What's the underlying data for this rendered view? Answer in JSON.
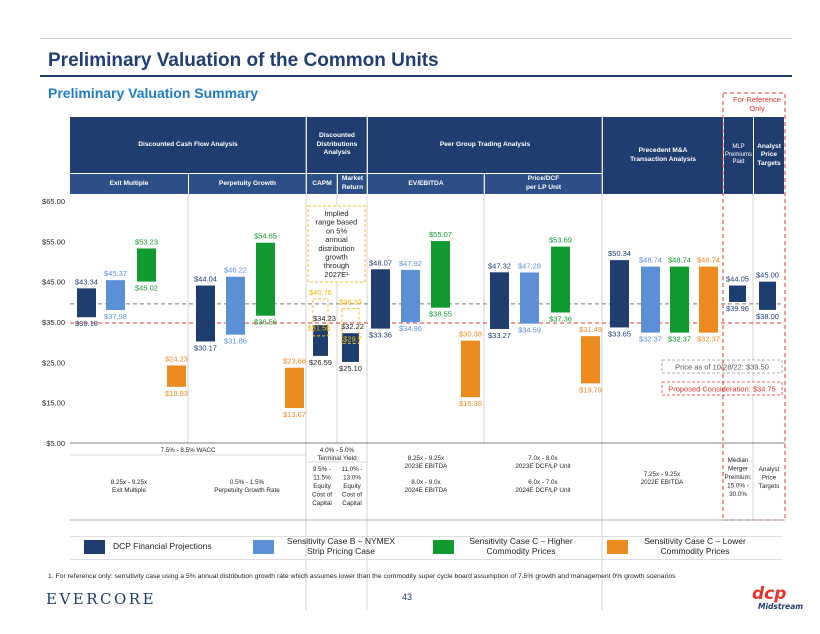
{
  "title": "Preliminary Valuation of the Common Units",
  "subtitle": "Preliminary Valuation Summary",
  "reference_note": "For Reference Only",
  "headers": {
    "dcf": "Discounted Cash Flow Analysis",
    "ddm": "Discounted Distributions Analysis",
    "peer": "Peer Group Trading Analysis",
    "precedent": "Precedent M&A Transaction Analysis",
    "mlp": "MLP Premiums Paid",
    "analyst": "Analyst Price Targets",
    "exit": "Exit Multiple",
    "perp": "Perpetuity Growth",
    "capm": "CAPM",
    "market": "Market Return",
    "ev": "EV/EBITDA",
    "pdcf": "Price/DCF per LP Unit"
  },
  "bottom_table": {
    "wacc": "7.5% - 8.5% WACC",
    "exit": [
      "8.25x - 9.25x",
      "Exit Multiple"
    ],
    "perp": [
      "0.5% - 1.5%",
      "Perpetuity Growth Rate"
    ],
    "yield": [
      "4.0% - 5.0%",
      "Terminal Yield"
    ],
    "capm": [
      "9.5% -",
      "11.5%",
      "Equity",
      "Cost of",
      "Capital"
    ],
    "market": [
      "11.0% -",
      "13.0%",
      "Equity",
      "Cost of",
      "Capital"
    ],
    "ev": [
      "8.25x - 9.25x",
      "2023E EBITDA",
      "",
      "8.0x - 9.0x",
      "2024E EBITDA"
    ],
    "pdcf": [
      "7.0x - 8.0x",
      "2023E DCF/LP Unit",
      "",
      "6.0x - 7.0x",
      "2024E DCF/LP Unit"
    ],
    "precedent": [
      "7.25x - 9.25x",
      "2022E EBITDA"
    ],
    "mlp": [
      "Median",
      "Merger",
      "Premium:",
      "15.0% -",
      "30.0%"
    ],
    "analyst": [
      "Analyst",
      "Price",
      "Targets"
    ]
  },
  "implied_note": [
    "Implied",
    "range based",
    "on 5%",
    "annual",
    "distribution",
    "growth",
    "through",
    "2027E¹"
  ],
  "price_label": "Price as of 10/28/22: $39.50",
  "proposed_label": "Proposed Consideration: $34.75",
  "legend": [
    {
      "label": "DCP Financial Projections",
      "color": "#1f3d6e"
    },
    {
      "label": "Sensitivity Case B – NYMEX Strip Pricing Case",
      "color": "#5b8fd6"
    },
    {
      "label": "Sensitivity Case C – Higher Commodity Prices",
      "color": "#109a30"
    },
    {
      "label": "Sensitivity Case C – Lower Commodity Prices",
      "color": "#ee8b1f"
    }
  ],
  "footnote": "1.    For reference only: sensitivity case using a 5% annual distribution growth rate which assumes lower than the commodity super cycle board assumption of 7.5% growth and management 0% growth scenarios",
  "brand": "EVERCORE",
  "page_number": "43",
  "logo": {
    "mark": "dcp",
    "name": "Midstream"
  },
  "colors": {
    "navy": "#1f3d6e",
    "blue": "#5b8fd6",
    "green": "#109a30",
    "orange": "#ee8b1f",
    "red": "#e4342e"
  },
  "chart_data": {
    "type": "bar",
    "subtype": "floating-range",
    "ylim": [
      5,
      65
    ],
    "yticks": [
      "$65.00",
      "$55.00",
      "$45.00",
      "$35.00",
      "$25.00",
      "$15.00",
      "$5.00"
    ],
    "reference_lines": [
      {
        "label": "Price as of 10/28/22: $39.50",
        "value": 39.5,
        "style": "dashed",
        "color": "#7f7f7f"
      },
      {
        "label": "Proposed Consideration: $34.75",
        "value": 34.75,
        "style": "dashed",
        "color": "#e4342e"
      }
    ],
    "bars": [
      {
        "category": "Exit Multiple",
        "series": "DCP Financial Projections",
        "low": 36.18,
        "high": 43.34,
        "low_label": "$36.18",
        "high_label": "$43.34"
      },
      {
        "category": "Exit Multiple",
        "series": "Sensitivity Case B",
        "low": 37.98,
        "high": 45.37,
        "low_label": "$37.98",
        "high_label": "$45.37"
      },
      {
        "category": "Exit Multiple",
        "series": "Sensitivity Case C – Higher",
        "low": 45.02,
        "high": 53.23,
        "low_label": "$45.02",
        "high_label": "$53.23"
      },
      {
        "category": "Exit Multiple",
        "series": "Sensitivity Case C – Lower",
        "low": 18.93,
        "high": 24.23,
        "low_label": "$18.93",
        "high_label": "$24.23"
      },
      {
        "category": "Perpetuity Growth",
        "series": "DCP Financial Projections",
        "low": 30.17,
        "high": 44.04,
        "low_label": "$30.17",
        "high_label": "$44.04"
      },
      {
        "category": "Perpetuity Growth",
        "series": "Sensitivity Case B",
        "low": 31.86,
        "high": 46.22,
        "low_label": "$31.86",
        "high_label": "$46.22"
      },
      {
        "category": "Perpetuity Growth",
        "series": "Sensitivity Case C – Higher",
        "low": 36.56,
        "high": 54.65,
        "low_label": "$36.56",
        "high_label": "$54.65"
      },
      {
        "category": "Perpetuity Growth",
        "series": "Sensitivity Case C – Lower",
        "low": 13.67,
        "high": 23.66,
        "low_label": "$13.67",
        "high_label": "$23.66"
      },
      {
        "category": "CAPM",
        "series": "DCP Financial Projections",
        "low": 26.59,
        "high": 34.23,
        "low_label": "$26.59",
        "high_label": "$34.23"
      },
      {
        "category": "CAPM",
        "series": "Implied 5% growth (reference)",
        "low": 31.56,
        "high": 40.76,
        "low_label": "$31.56",
        "high_label": "$40.76",
        "reference": true
      },
      {
        "category": "Market Return",
        "series": "DCP Financial Projections",
        "low": 25.1,
        "high": 32.22,
        "low_label": "$25.10",
        "high_label": "$32.22"
      },
      {
        "category": "Market Return",
        "series": "Implied 5% growth (reference)",
        "low": 29.7,
        "high": 38.33,
        "low_label": "$29.7",
        "high_label": "$38.33",
        "reference": true
      },
      {
        "category": "EV/EBITDA",
        "series": "DCP Financial Projections",
        "low": 33.36,
        "high": 48.07,
        "low_label": "$33.36",
        "high_label": "$48.07"
      },
      {
        "category": "EV/EBITDA",
        "series": "Sensitivity Case B",
        "low": 34.96,
        "high": 47.92,
        "low_label": "$34.96",
        "high_label": "$47.92"
      },
      {
        "category": "EV/EBITDA",
        "series": "Sensitivity Case C – Higher",
        "low": 38.55,
        "high": 55.07,
        "low_label": "$38.55",
        "high_label": "$55.07"
      },
      {
        "category": "EV/EBITDA",
        "series": "Sensitivity Case C – Lower",
        "low": 16.36,
        "high": 30.38,
        "low_label": "$16.36",
        "high_label": "$30.38"
      },
      {
        "category": "Price/DCF per LP Unit",
        "series": "DCP Financial Projections",
        "low": 33.27,
        "high": 47.32,
        "low_label": "$33.27",
        "high_label": "$47.32"
      },
      {
        "category": "Price/DCF per LP Unit",
        "series": "Sensitivity Case B",
        "low": 34.59,
        "high": 47.28,
        "low_label": "$34.59",
        "high_label": "$47.28"
      },
      {
        "category": "Price/DCF per LP Unit",
        "series": "Sensitivity Case C – Higher",
        "low": 37.36,
        "high": 53.69,
        "low_label": "$37.36",
        "high_label": "$53.69"
      },
      {
        "category": "Price/DCF per LP Unit",
        "series": "Sensitivity Case C – Lower",
        "low": 19.79,
        "high": 31.49,
        "low_label": "$19.79",
        "high_label": "$31.49"
      },
      {
        "category": "Precedent M&A",
        "series": "DCP Financial Projections",
        "low": 33.65,
        "high": 50.34,
        "low_label": "$33.65",
        "high_label": "$50.34"
      },
      {
        "category": "Precedent M&A",
        "series": "Sensitivity Case B",
        "low": 32.37,
        "high": 48.74,
        "low_label": "$32.37",
        "high_label": "$48.74"
      },
      {
        "category": "Precedent M&A",
        "series": "Sensitivity Case C – Higher",
        "low": 32.37,
        "high": 48.74,
        "low_label": "$32.37",
        "high_label": "$48.74"
      },
      {
        "category": "Precedent M&A",
        "series": "Sensitivity Case C – Lower",
        "low": 32.37,
        "high": 48.74,
        "low_label": "$32.37",
        "high_label": "$48.74"
      },
      {
        "category": "MLP Premiums Paid",
        "series": "DCP Financial Projections",
        "low": 39.96,
        "high": 44.05,
        "low_label": "$39.96",
        "high_label": "$44.05"
      },
      {
        "category": "Analyst Price Targets",
        "series": "DCP Financial Projections",
        "low": 38.0,
        "high": 45.0,
        "low_label": "$38.00",
        "high_label": "$45.00"
      }
    ]
  }
}
